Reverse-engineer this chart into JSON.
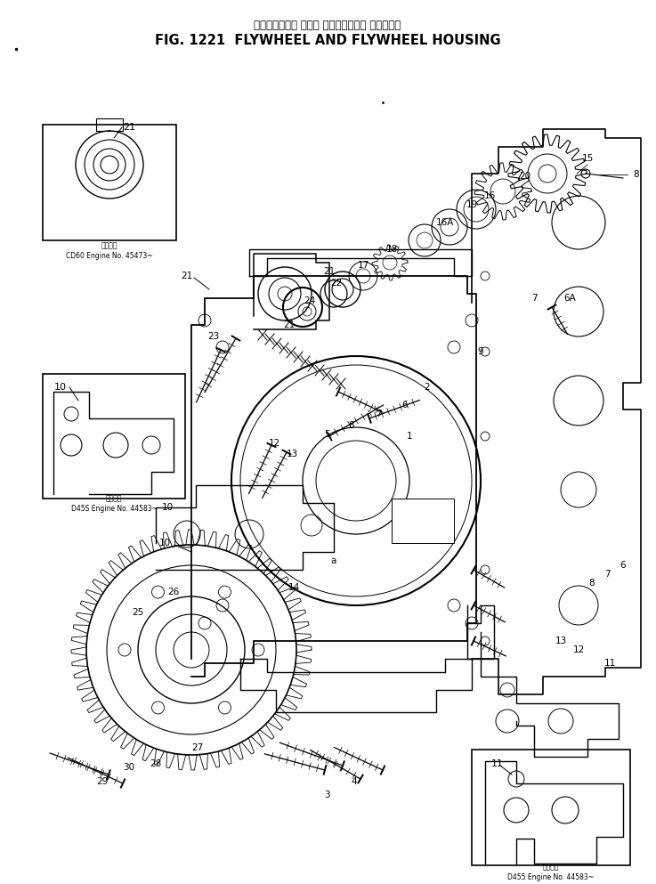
{
  "title_japanese": "フライホイール および フライホイール ハウジング",
  "title_english": "FIG. 1221  FLYWHEEL AND FLYWHEEL HOUSING",
  "bg_color": "#ffffff",
  "text_color": "#000000",
  "fig_width": 7.37,
  "fig_height": 9.93,
  "dpi": 100,
  "box1_sublabel_jp": "適用号等",
  "box1_sublabel_en": "CD60 Engine No. 45473~",
  "box2_sublabel_jp": "適用号等",
  "box2_sublabel_en": "D45S Engine No. 44583~",
  "box3_sublabel_jp": "適用号等",
  "box3_sublabel_en": "D455 Engine No. 44583~"
}
